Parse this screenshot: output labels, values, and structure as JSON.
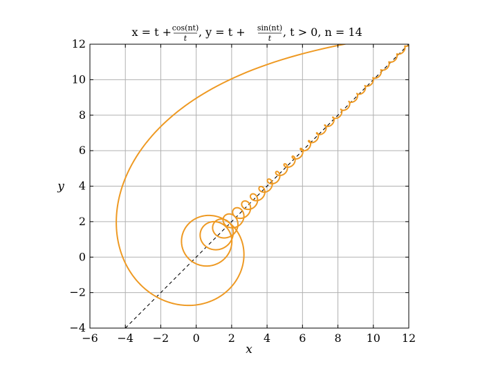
{
  "chart_data": {
    "type": "line",
    "title": {
      "eq_x": "x = t +",
      "frac1_num": "cos(nt)",
      "frac1_den": "t",
      "sep1": ", y = t +",
      "frac2_num": "sin(nt)",
      "frac2_den": "t",
      "tail": ", t > 0, n = 14"
    },
    "xlabel": "x",
    "ylabel": "y",
    "xlim": [
      -6,
      12
    ],
    "ylim": [
      -4,
      12
    ],
    "xticks": [
      -6,
      -4,
      -2,
      0,
      2,
      4,
      6,
      8,
      10,
      12
    ],
    "yticks": [
      -4,
      -2,
      0,
      2,
      4,
      6,
      8,
      10,
      12
    ],
    "xtick_labels": [
      "−6",
      "−4",
      "−2",
      "0",
      "2",
      "4",
      "6",
      "8",
      "10",
      "12"
    ],
    "ytick_labels": [
      "−4",
      "−2",
      "0",
      "2",
      "4",
      "6",
      "8",
      "10",
      "12"
    ],
    "grid": true,
    "n": 14,
    "t_range": [
      0.05,
      12.5
    ],
    "series": [
      {
        "kind": "parametric",
        "x_expr": "t + cos(n t)/t",
        "y_expr": "t + sin(n t)/t",
        "color": "#EE9922"
      },
      {
        "kind": "line",
        "x": [
          -4,
          12
        ],
        "y": [
          -4,
          12
        ],
        "color": "#000000",
        "dash": "dashed"
      }
    ]
  }
}
